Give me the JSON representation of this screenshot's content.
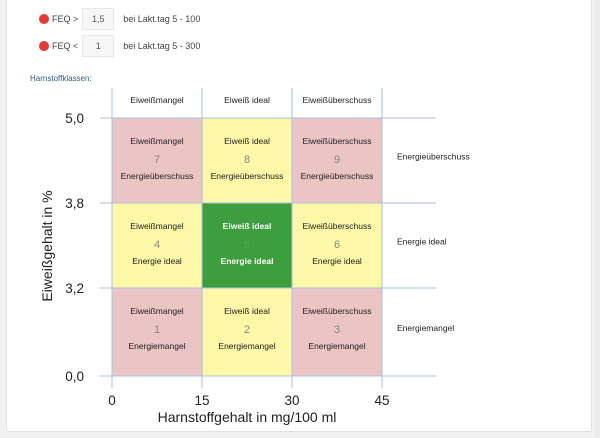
{
  "feq": [
    {
      "label": "FEQ >",
      "value": "1,5",
      "note": "bei Lakt.tag 5 - 100",
      "status_color": "#e53935"
    },
    {
      "label": "FEQ <",
      "value": "1",
      "note": "bei Lakt.tag 5 - 300",
      "status_color": "#e53935"
    }
  ],
  "section_label": "Harnstoffklassen:",
  "chart_data": {
    "type": "heatmap",
    "xlabel": "Harnstoffgehalt in mg/100 ml",
    "ylabel": "Eiweißgehalt in %",
    "x_ticks": [
      "0",
      "15",
      "30",
      "45"
    ],
    "y_ticks": [
      "5,0",
      "3,8",
      "3,2",
      "0,0"
    ],
    "column_headers": [
      "Eiweißmangel",
      "Eiweiß ideal",
      "Eiweißüberschuss"
    ],
    "row_labels": [
      "Energieüberschuss",
      "Energie ideal",
      "Energiemangel"
    ],
    "colors": {
      "red": "#ebc4c4",
      "yellow": "#fcf8a8",
      "green": "#3d9e3d",
      "grid": "#a9c2e3"
    },
    "cells": [
      {
        "id": "7",
        "row": 0,
        "col": 0,
        "protein": "Eiweißmangel",
        "energy": "Energieüberschuss",
        "color": "red"
      },
      {
        "id": "8",
        "row": 0,
        "col": 1,
        "protein": "Eiweiß ideal",
        "energy": "Energieüberschuss",
        "color": "yellow"
      },
      {
        "id": "9",
        "row": 0,
        "col": 2,
        "protein": "Eiweißüberschuss",
        "energy": "Energieüberschuss",
        "color": "red"
      },
      {
        "id": "4",
        "row": 1,
        "col": 0,
        "protein": "Eiweißmangel",
        "energy": "Energie ideal",
        "color": "yellow"
      },
      {
        "id": "5",
        "row": 1,
        "col": 1,
        "protein": "Eiweiß ideal",
        "energy": "Energie ideal",
        "color": "green"
      },
      {
        "id": "6",
        "row": 1,
        "col": 2,
        "protein": "Eiweißüberschuss",
        "energy": "Energie ideal",
        "color": "yellow"
      },
      {
        "id": "1",
        "row": 2,
        "col": 0,
        "protein": "Eiweißmangel",
        "energy": "Energiemangel",
        "color": "red"
      },
      {
        "id": "2",
        "row": 2,
        "col": 1,
        "protein": "Eiweiß ideal",
        "energy": "Energiemangel",
        "color": "yellow"
      },
      {
        "id": "3",
        "row": 2,
        "col": 2,
        "protein": "Eiweißüberschuss",
        "energy": "Energiemangel",
        "color": "red"
      }
    ]
  }
}
